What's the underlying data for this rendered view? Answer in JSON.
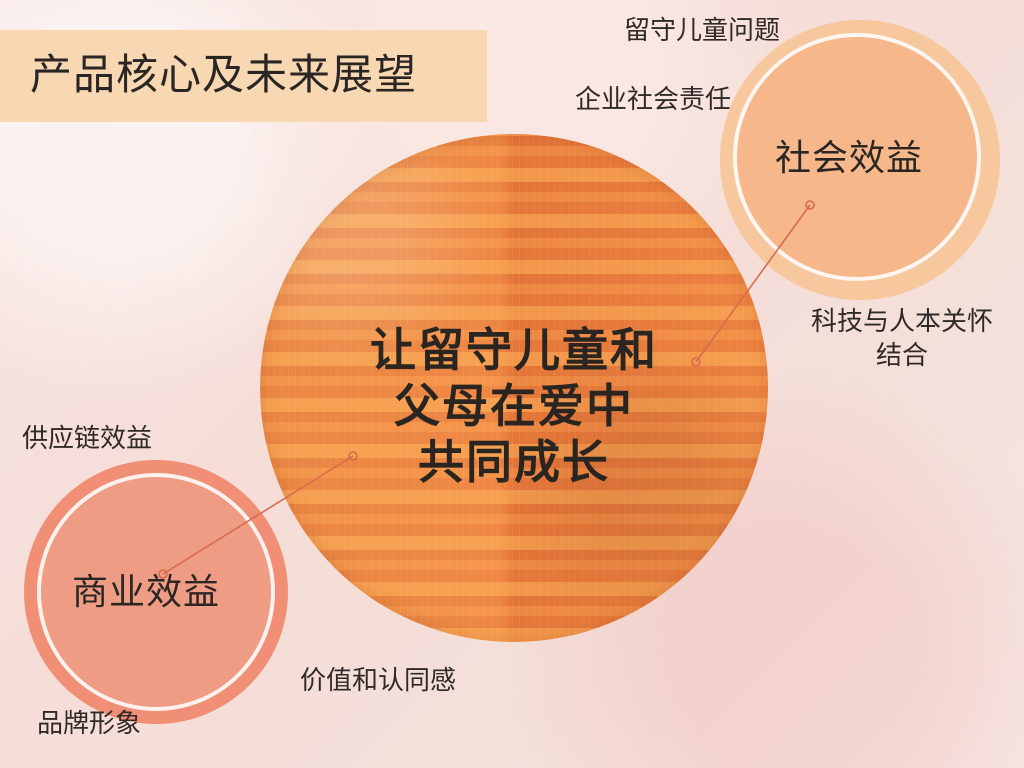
{
  "page": {
    "title": "产品核心及未来展望"
  },
  "diagram": {
    "center_text": "让留守儿童和\n父母在爱中\n共同成长",
    "social_circle_label": "社会效益",
    "business_circle_label": "商业效益",
    "annotations": {
      "left_behind_children": "留守儿童问题",
      "csr": "企业社会责任",
      "tech_humanistic_care": "科技与人本关怀\n结合",
      "supply_chain": "供应链效益",
      "value_identity": "价值和认同感",
      "brand_image": "品牌形象"
    }
  },
  "colors": {
    "background": "#f6dfd9",
    "title_band": "#f8d8b3",
    "main_circle": "#ec8f48",
    "social_circle": "#f6b88b",
    "business_circle": "#ef9c84",
    "connector": "#d96a4d"
  }
}
